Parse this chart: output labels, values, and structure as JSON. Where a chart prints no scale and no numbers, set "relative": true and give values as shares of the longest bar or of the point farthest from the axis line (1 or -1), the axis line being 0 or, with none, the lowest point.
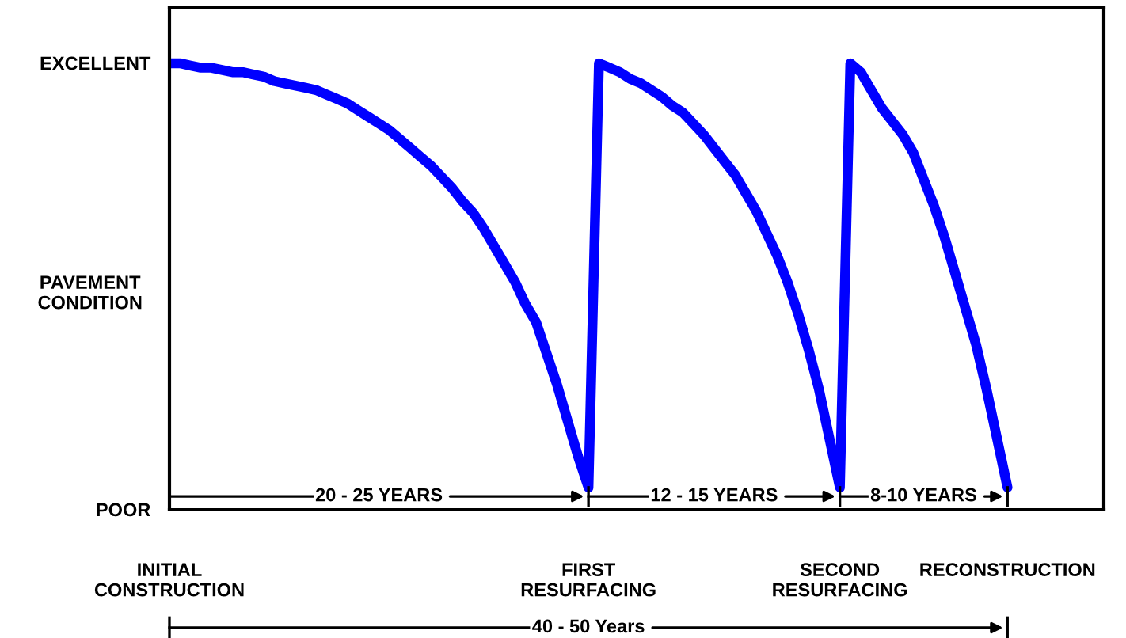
{
  "chart_data": {
    "type": "line",
    "relative": true,
    "ylabel": "PAVEMENT\nCONDITION",
    "categories": [
      "INITIAL\nCONSTRUCTION",
      null,
      null,
      null,
      null,
      null,
      null,
      null,
      null,
      null,
      null,
      null,
      null,
      null,
      null,
      null,
      null,
      null,
      null,
      null,
      null,
      null,
      null,
      null,
      null,
      null,
      null,
      null,
      null,
      null,
      null,
      null,
      null,
      null,
      null,
      null,
      null,
      null,
      null,
      null,
      "FIRST\nRESURFACING",
      null,
      null,
      null,
      null,
      null,
      null,
      null,
      null,
      null,
      null,
      null,
      null,
      null,
      null,
      null,
      null,
      null,
      null,
      null,
      null,
      null,
      null,
      null,
      "SECOND\nRESURFACING",
      null,
      null,
      null,
      null,
      null,
      null,
      null,
      null,
      null,
      null,
      null,
      null,
      null,
      null,
      null,
      "RECONSTRUCTION"
    ],
    "series": [
      {
        "color": "#0000ff",
        "values": [
          1.0,
          1.0,
          0.995,
          0.99,
          0.99,
          0.985,
          0.98,
          0.98,
          0.975,
          0.97,
          0.96,
          0.955,
          0.95,
          0.945,
          0.94,
          0.93,
          0.92,
          0.91,
          0.895,
          0.88,
          0.865,
          0.85,
          0.83,
          0.81,
          0.79,
          0.77,
          0.745,
          0.72,
          0.69,
          0.665,
          0.63,
          0.59,
          0.55,
          0.51,
          0.46,
          0.42,
          0.35,
          0.28,
          0.2,
          0.12,
          0.05,
          1.0,
          0.99,
          0.98,
          0.965,
          0.955,
          0.94,
          0.925,
          0.905,
          0.89,
          0.865,
          0.84,
          0.81,
          0.78,
          0.75,
          0.71,
          0.67,
          0.62,
          0.57,
          0.51,
          0.44,
          0.36,
          0.27,
          0.16,
          0.05,
          1.0,
          0.98,
          0.94,
          0.9,
          0.87,
          0.84,
          0.8,
          0.74,
          0.68,
          0.61,
          0.53,
          0.45,
          0.37,
          0.27,
          0.16,
          0.05
        ]
      }
    ],
    "annotations": [
      "EXCELLENT",
      "POOR",
      "20 - 25 YEARS",
      "12 - 15 YEARS",
      "8-10 YEARS",
      "40 - 50 Years"
    ],
    "marker": "none",
    "line_style": "solid",
    "grid": false,
    "legend": false
  }
}
